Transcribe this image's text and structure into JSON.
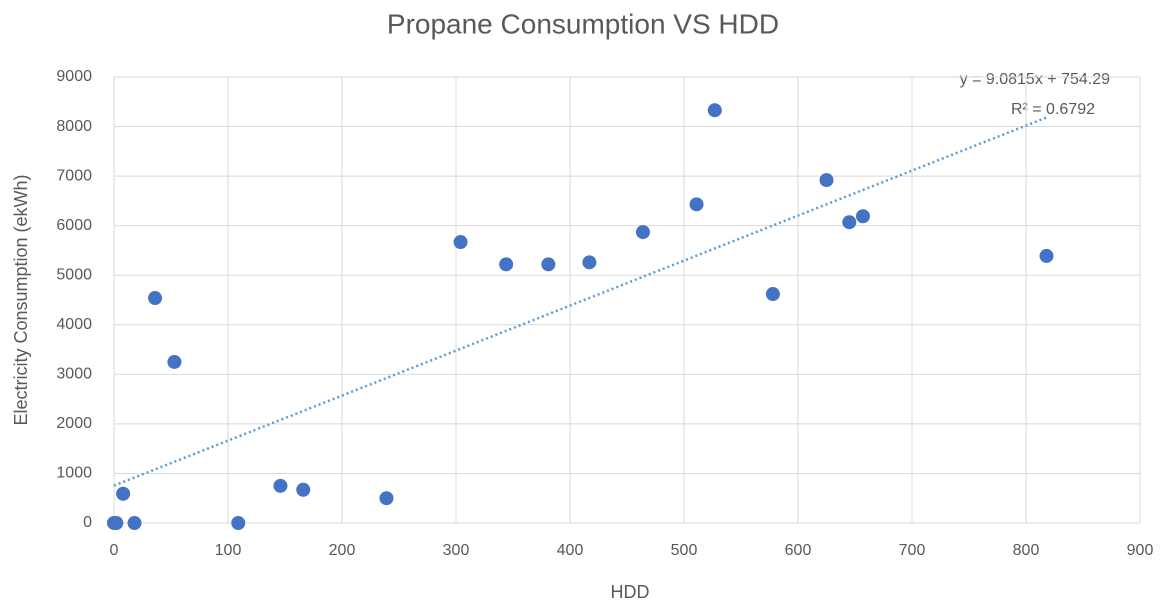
{
  "chart_data": {
    "type": "scatter",
    "title": "Propane Consumption VS HDD",
    "x_label": "HDD",
    "y_label": "Electricity Consumption (ekWh)",
    "series": [
      {
        "color": "#4472c4",
        "x": [
          0,
          2,
          8,
          18,
          36,
          53,
          109,
          146,
          166,
          239,
          304,
          344,
          381,
          417,
          464,
          511,
          527,
          578,
          625,
          645,
          657,
          818
        ],
        "values": [
          0,
          0,
          590,
          0,
          4540,
          3250,
          0,
          750,
          670,
          500,
          5670,
          5220,
          5220,
          5260,
          5870,
          6430,
          8330,
          4620,
          6920,
          6070,
          6190,
          5390
        ]
      }
    ],
    "trendline": {
      "slope": 9.0815,
      "intercept": 754.29,
      "color": "#5b9bd5",
      "equation": "y = 9.0815x + 754.29",
      "r_squared": 0.6792,
      "r_squared_label": "R² = 0.6792"
    },
    "xlim": [
      0,
      900
    ],
    "xticks": [
      0,
      100,
      200,
      300,
      400,
      500,
      600,
      700,
      800,
      900
    ],
    "ylim": [
      0,
      9000
    ],
    "yticks": [
      0,
      1000,
      2000,
      3000,
      4000,
      5000,
      6000,
      7000,
      8000,
      9000
    ],
    "grid": true
  }
}
